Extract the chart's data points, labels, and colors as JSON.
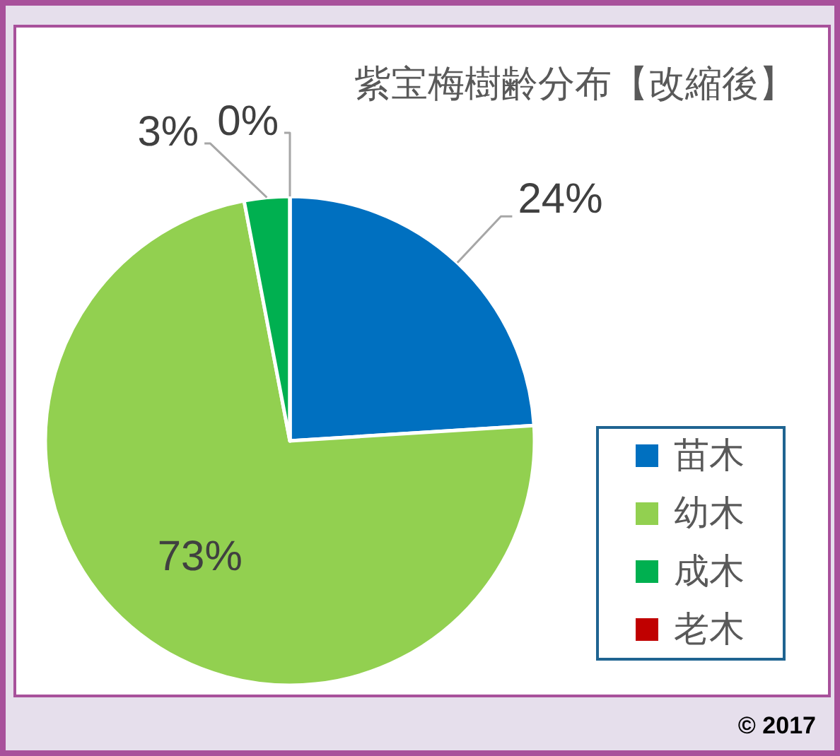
{
  "chart_data": {
    "type": "pie",
    "title": "紫宝梅樹齢分布【改縮後】",
    "categories": [
      "苗木",
      "幼木",
      "成木",
      "老木"
    ],
    "values": [
      24,
      73,
      3,
      0
    ],
    "colors": [
      "#0070c0",
      "#92d050",
      "#00b050",
      "#c00000"
    ],
    "value_labels": [
      "24%",
      "73%",
      "3%",
      "0%"
    ],
    "legend": "bottom right",
    "annotations": [
      "© 2017"
    ]
  }
}
